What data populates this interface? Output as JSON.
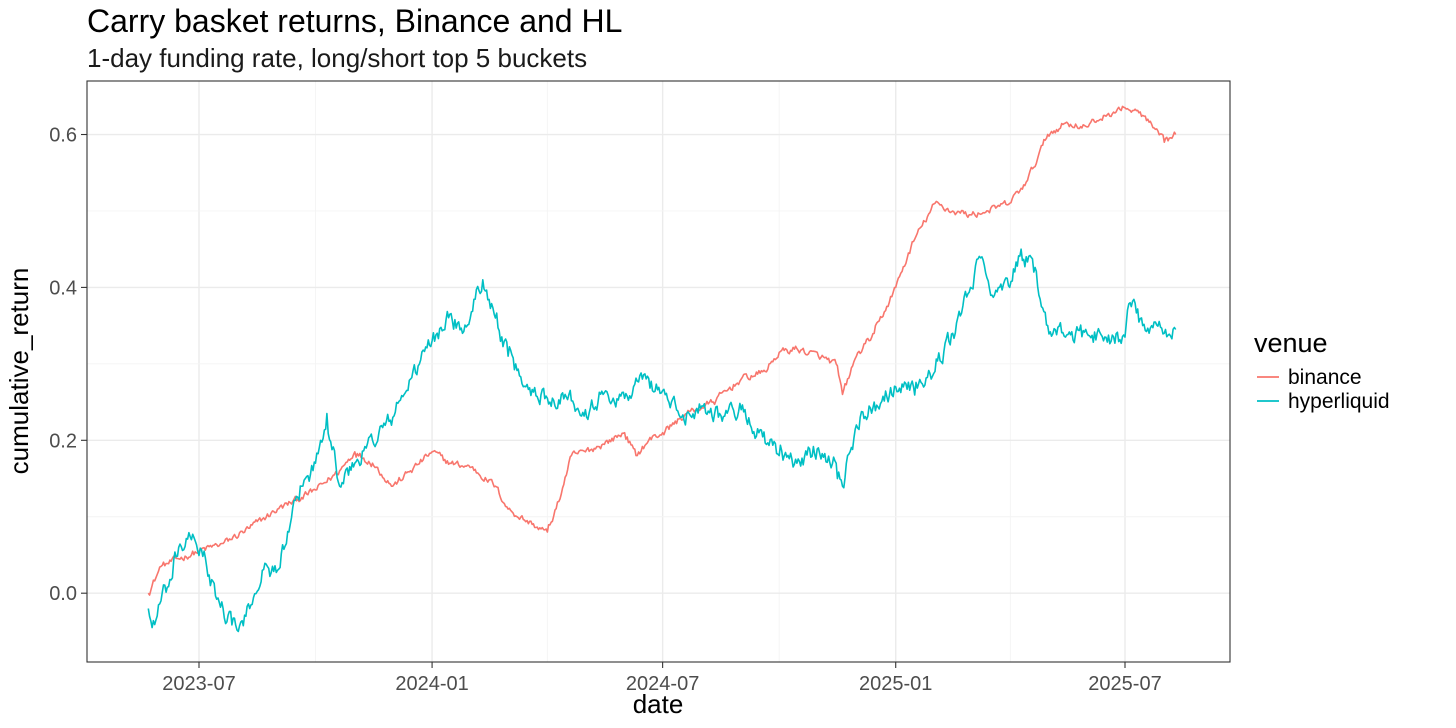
{
  "chart_data": {
    "type": "line",
    "title": "Carry basket returns, Binance and HL",
    "subtitle": "1-day funding rate, long/short top 5 buckets",
    "xlabel": "date",
    "ylabel": "cumulative_return",
    "x_ticks": [
      "2023-07",
      "2024-01",
      "2024-07",
      "2025-01",
      "2025-07"
    ],
    "y_ticks": [
      "0.0",
      "0.2",
      "0.4",
      "0.6"
    ],
    "ylim": [
      -0.09,
      0.67
    ],
    "grid": true,
    "legend": {
      "title": "venue",
      "position": "right"
    },
    "series": [
      {
        "name": "binance",
        "color": "#F8766D",
        "points": [
          [
            "2023-05-22",
            0.0
          ],
          [
            "2023-06-01",
            0.035
          ],
          [
            "2023-06-15",
            0.045
          ],
          [
            "2023-07-01",
            0.055
          ],
          [
            "2023-07-20",
            0.065
          ],
          [
            "2023-08-10",
            0.085
          ],
          [
            "2023-09-01",
            0.11
          ],
          [
            "2023-09-20",
            0.125
          ],
          [
            "2023-10-01",
            0.135
          ],
          [
            "2023-10-20",
            0.16
          ],
          [
            "2023-11-01",
            0.185
          ],
          [
            "2023-11-15",
            0.17
          ],
          [
            "2023-12-01",
            0.14
          ],
          [
            "2023-12-15",
            0.16
          ],
          [
            "2024-01-01",
            0.185
          ],
          [
            "2024-01-15",
            0.17
          ],
          [
            "2024-02-01",
            0.165
          ],
          [
            "2024-02-20",
            0.14
          ],
          [
            "2024-03-01",
            0.11
          ],
          [
            "2024-03-20",
            0.09
          ],
          [
            "2024-04-01",
            0.08
          ],
          [
            "2024-04-10",
            0.12
          ],
          [
            "2024-04-20",
            0.18
          ],
          [
            "2024-05-01",
            0.185
          ],
          [
            "2024-05-15",
            0.195
          ],
          [
            "2024-06-01",
            0.21
          ],
          [
            "2024-06-10",
            0.18
          ],
          [
            "2024-06-20",
            0.2
          ],
          [
            "2024-07-01",
            0.21
          ],
          [
            "2024-07-20",
            0.235
          ],
          [
            "2024-08-10",
            0.25
          ],
          [
            "2024-09-01",
            0.28
          ],
          [
            "2024-09-20",
            0.29
          ],
          [
            "2024-10-01",
            0.315
          ],
          [
            "2024-10-15",
            0.32
          ],
          [
            "2024-11-01",
            0.31
          ],
          [
            "2024-11-15",
            0.3
          ],
          [
            "2024-11-20",
            0.26
          ],
          [
            "2024-12-01",
            0.31
          ],
          [
            "2024-12-15",
            0.34
          ],
          [
            "2025-01-01",
            0.4
          ],
          [
            "2025-01-15",
            0.46
          ],
          [
            "2025-02-01",
            0.51
          ],
          [
            "2025-02-15",
            0.5
          ],
          [
            "2025-03-01",
            0.495
          ],
          [
            "2025-03-15",
            0.5
          ],
          [
            "2025-04-01",
            0.51
          ],
          [
            "2025-04-15",
            0.54
          ],
          [
            "2025-05-01",
            0.6
          ],
          [
            "2025-05-15",
            0.615
          ],
          [
            "2025-06-01",
            0.61
          ],
          [
            "2025-06-15",
            0.625
          ],
          [
            "2025-07-01",
            0.635
          ],
          [
            "2025-07-15",
            0.625
          ],
          [
            "2025-08-01",
            0.59
          ],
          [
            "2025-08-10",
            0.6
          ]
        ]
      },
      {
        "name": "hyperliquid",
        "color": "#00BFC4",
        "points": [
          [
            "2023-05-22",
            -0.02
          ],
          [
            "2023-05-25",
            -0.045
          ],
          [
            "2023-06-01",
            -0.01
          ],
          [
            "2023-06-10",
            0.02
          ],
          [
            "2023-06-15",
            0.06
          ],
          [
            "2023-06-25",
            0.07
          ],
          [
            "2023-07-05",
            0.055
          ],
          [
            "2023-07-10",
            0.01
          ],
          [
            "2023-07-20",
            -0.02
          ],
          [
            "2023-08-01",
            -0.05
          ],
          [
            "2023-08-10",
            -0.02
          ],
          [
            "2023-08-20",
            0.03
          ],
          [
            "2023-09-01",
            0.03
          ],
          [
            "2023-09-10",
            0.08
          ],
          [
            "2023-09-20",
            0.14
          ],
          [
            "2023-10-01",
            0.17
          ],
          [
            "2023-10-10",
            0.235
          ],
          [
            "2023-10-20",
            0.14
          ],
          [
            "2023-11-01",
            0.17
          ],
          [
            "2023-11-15",
            0.2
          ],
          [
            "2023-12-01",
            0.23
          ],
          [
            "2023-12-15",
            0.28
          ],
          [
            "2024-01-01",
            0.33
          ],
          [
            "2024-01-15",
            0.365
          ],
          [
            "2024-01-25",
            0.34
          ],
          [
            "2024-02-10",
            0.41
          ],
          [
            "2024-02-20",
            0.36
          ],
          [
            "2024-03-01",
            0.31
          ],
          [
            "2024-03-15",
            0.27
          ],
          [
            "2024-04-01",
            0.255
          ],
          [
            "2024-04-15",
            0.26
          ],
          [
            "2024-05-01",
            0.24
          ],
          [
            "2024-05-15",
            0.26
          ],
          [
            "2024-06-01",
            0.255
          ],
          [
            "2024-06-15",
            0.28
          ],
          [
            "2024-07-01",
            0.265
          ],
          [
            "2024-07-15",
            0.23
          ],
          [
            "2024-08-01",
            0.245
          ],
          [
            "2024-08-15",
            0.235
          ],
          [
            "2024-09-01",
            0.24
          ],
          [
            "2024-09-15",
            0.21
          ],
          [
            "2024-10-01",
            0.18
          ],
          [
            "2024-10-15",
            0.17
          ],
          [
            "2024-11-01",
            0.19
          ],
          [
            "2024-11-15",
            0.17
          ],
          [
            "2024-11-20",
            0.14
          ],
          [
            "2024-12-01",
            0.22
          ],
          [
            "2024-12-15",
            0.25
          ],
          [
            "2025-01-01",
            0.27
          ],
          [
            "2025-01-15",
            0.27
          ],
          [
            "2025-02-01",
            0.29
          ],
          [
            "2025-02-15",
            0.34
          ],
          [
            "2025-03-01",
            0.4
          ],
          [
            "2025-03-10",
            0.44
          ],
          [
            "2025-03-20",
            0.39
          ],
          [
            "2025-04-01",
            0.4
          ],
          [
            "2025-04-10",
            0.45
          ],
          [
            "2025-04-20",
            0.42
          ],
          [
            "2025-05-01",
            0.35
          ],
          [
            "2025-05-15",
            0.335
          ],
          [
            "2025-06-01",
            0.34
          ],
          [
            "2025-06-15",
            0.335
          ],
          [
            "2025-07-01",
            0.335
          ],
          [
            "2025-07-05",
            0.38
          ],
          [
            "2025-07-15",
            0.35
          ],
          [
            "2025-08-01",
            0.34
          ],
          [
            "2025-08-10",
            0.345
          ]
        ]
      }
    ]
  }
}
